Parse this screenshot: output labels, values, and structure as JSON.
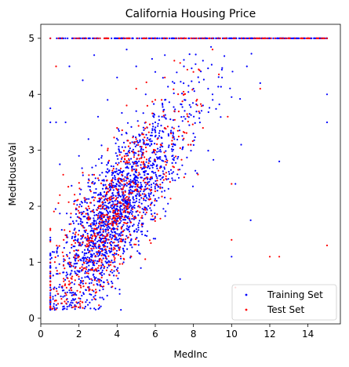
{
  "chart_data": {
    "type": "scatter",
    "title": "California Housing Price",
    "xlabel": "MedInc",
    "ylabel": "MedHouseVal",
    "xlim": [
      0,
      15.7
    ],
    "ylim": [
      -0.1,
      5.25
    ],
    "xticks": [
      "0",
      "2",
      "4",
      "6",
      "8",
      "10",
      "12",
      "14"
    ],
    "yticks": [
      "0",
      "1",
      "2",
      "3",
      "4",
      "5"
    ],
    "grid": false,
    "legend_position": "lower-right",
    "series": [
      {
        "name": "Training Set",
        "color": "#0000ff",
        "marker": "dot",
        "points": [
          [
            0.5,
            0.15
          ],
          [
            0.5,
            0.45
          ],
          [
            0.5,
            1.12
          ],
          [
            0.5,
            3.5
          ],
          [
            0.5,
            3.75
          ],
          [
            0.5,
            5.0
          ],
          [
            0.8,
            0.9
          ],
          [
            0.8,
            3.5
          ],
          [
            1.0,
            0.6
          ],
          [
            1.0,
            1.87
          ],
          [
            1.0,
            2.75
          ],
          [
            1.0,
            5.0
          ],
          [
            1.2,
            0.5
          ],
          [
            1.3,
            3.5
          ],
          [
            1.5,
            0.5
          ],
          [
            1.5,
            4.5
          ],
          [
            1.8,
            0.45
          ],
          [
            1.8,
            2.1
          ],
          [
            2.0,
            0.7
          ],
          [
            2.0,
            1.3
          ],
          [
            2.0,
            2.9
          ],
          [
            2.2,
            4.25
          ],
          [
            2.5,
            0.55
          ],
          [
            2.5,
            1.0
          ],
          [
            2.5,
            1.8
          ],
          [
            2.5,
            3.2
          ],
          [
            2.8,
            2.4
          ],
          [
            2.8,
            4.7
          ],
          [
            3.0,
            0.7
          ],
          [
            3.0,
            1.5
          ],
          [
            3.0,
            2.2
          ],
          [
            3.0,
            3.6
          ],
          [
            3.2,
            2.9
          ],
          [
            3.5,
            1.0
          ],
          [
            3.5,
            1.9
          ],
          [
            3.5,
            2.6
          ],
          [
            3.5,
            3.9
          ],
          [
            3.8,
            2.2
          ],
          [
            4.0,
            1.3
          ],
          [
            4.0,
            2.0
          ],
          [
            4.0,
            2.9
          ],
          [
            4.0,
            4.3
          ],
          [
            4.2,
            0.15
          ],
          [
            4.5,
            1.6
          ],
          [
            4.5,
            2.5
          ],
          [
            4.5,
            3.3
          ],
          [
            4.5,
            4.8
          ],
          [
            5.0,
            1.9
          ],
          [
            5.0,
            2.8
          ],
          [
            5.0,
            3.7
          ],
          [
            5.0,
            4.5
          ],
          [
            5.5,
            2.2
          ],
          [
            5.5,
            3.1
          ],
          [
            5.5,
            4.0
          ],
          [
            6.0,
            2.6
          ],
          [
            6.0,
            3.5
          ],
          [
            6.0,
            4.4
          ],
          [
            6.5,
            2.9
          ],
          [
            6.5,
            3.9
          ],
          [
            6.5,
            4.7
          ],
          [
            7.0,
            3.2
          ],
          [
            7.0,
            4.2
          ],
          [
            7.3,
            0.7
          ],
          [
            7.5,
            3.6
          ],
          [
            7.5,
            4.5
          ],
          [
            8.0,
            3.3
          ],
          [
            8.0,
            4.1
          ],
          [
            8.5,
            3.8
          ],
          [
            8.5,
            4.6
          ],
          [
            9.0,
            4.0
          ],
          [
            9.5,
            4.3
          ],
          [
            10.0,
            3.95
          ],
          [
            10.0,
            1.1
          ],
          [
            10.2,
            2.4
          ],
          [
            10.5,
            3.1
          ],
          [
            10.8,
            4.5
          ],
          [
            11.0,
            1.75
          ],
          [
            11.5,
            4.2
          ],
          [
            12.0,
            5.0
          ],
          [
            12.5,
            2.8
          ],
          [
            13.0,
            5.0
          ],
          [
            14.0,
            5.0
          ],
          [
            15.0,
            4.0
          ],
          [
            15.0,
            3.5
          ],
          [
            15.0,
            5.0
          ]
        ]
      },
      {
        "name": "Test Set",
        "color": "#ff0000",
        "marker": "dot",
        "points": [
          [
            0.5,
            0.5
          ],
          [
            0.5,
            1.6
          ],
          [
            0.5,
            5.0
          ],
          [
            0.8,
            4.5
          ],
          [
            1.0,
            0.8
          ],
          [
            1.0,
            2.2
          ],
          [
            1.2,
            1.4
          ],
          [
            1.5,
            0.6
          ],
          [
            1.5,
            1.0
          ],
          [
            1.8,
            0.9
          ],
          [
            1.8,
            1.5
          ],
          [
            2.0,
            0.6
          ],
          [
            2.0,
            1.1
          ],
          [
            2.0,
            1.8
          ],
          [
            2.2,
            2.6
          ],
          [
            2.5,
            0.8
          ],
          [
            2.5,
            1.3
          ],
          [
            2.5,
            2.0
          ],
          [
            2.8,
            1.6
          ],
          [
            3.0,
            0.9
          ],
          [
            3.0,
            1.8
          ],
          [
            3.0,
            2.5
          ],
          [
            3.2,
            1.2
          ],
          [
            3.5,
            1.5
          ],
          [
            3.5,
            2.1
          ],
          [
            3.5,
            3.0
          ],
          [
            3.8,
            1.8
          ],
          [
            4.0,
            1.6
          ],
          [
            4.0,
            2.3
          ],
          [
            4.0,
            3.4
          ],
          [
            4.2,
            2.8
          ],
          [
            4.5,
            2.0
          ],
          [
            4.5,
            2.9
          ],
          [
            4.5,
            3.8
          ],
          [
            5.0,
            2.3
          ],
          [
            5.0,
            3.2
          ],
          [
            5.0,
            4.1
          ],
          [
            5.5,
            2.7
          ],
          [
            5.5,
            3.5
          ],
          [
            6.0,
            3.0
          ],
          [
            6.0,
            3.9
          ],
          [
            6.0,
            5.0
          ],
          [
            6.5,
            3.4
          ],
          [
            6.5,
            4.3
          ],
          [
            7.0,
            3.7
          ],
          [
            7.0,
            4.6
          ],
          [
            7.5,
            4.0
          ],
          [
            8.0,
            4.4
          ],
          [
            8.5,
            3.4
          ],
          [
            9.0,
            4.8
          ],
          [
            9.8,
            3.6
          ],
          [
            10.0,
            2.4
          ],
          [
            10.0,
            1.4
          ],
          [
            10.2,
            0.55
          ],
          [
            11.5,
            4.1
          ],
          [
            12.0,
            1.1
          ],
          [
            12.5,
            1.1
          ],
          [
            13.0,
            5.0
          ],
          [
            14.0,
            5.0
          ],
          [
            15.0,
            1.3
          ],
          [
            15.0,
            5.0
          ]
        ]
      }
    ]
  }
}
